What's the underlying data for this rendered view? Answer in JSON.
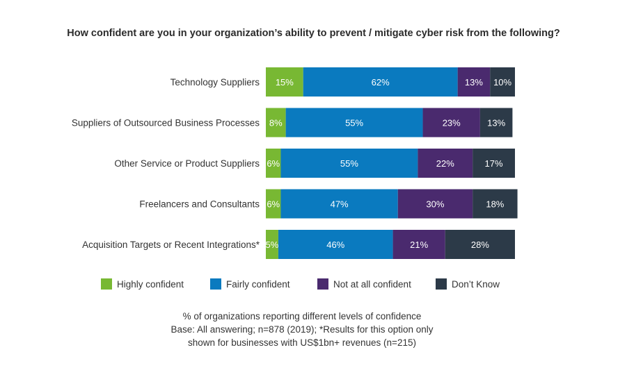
{
  "chart_data": {
    "type": "bar",
    "orientation": "horizontal",
    "stacked": true,
    "title": "How confident are you in your organization’s ability to prevent / mitigate cyber risk from the following?",
    "categories": [
      "Technology Suppliers",
      "Suppliers of Outsourced Business Processes",
      "Other Service or Product Suppliers",
      "Freelancers and Consultants",
      "Acquisition Targets or Recent Integrations*"
    ],
    "series": [
      {
        "name": "Highly confident",
        "color": "#78b833",
        "values": [
          15,
          8,
          6,
          6,
          5
        ]
      },
      {
        "name": "Fairly confident",
        "color": "#0a7abf",
        "values": [
          62,
          55,
          55,
          47,
          46
        ]
      },
      {
        "name": "Not at all confident",
        "color": "#4a2a6e",
        "values": [
          13,
          23,
          22,
          30,
          21
        ]
      },
      {
        "name": "Don’t Know",
        "color": "#2c3a48",
        "values": [
          10,
          13,
          17,
          18,
          28
        ]
      }
    ],
    "data_labels": [
      [
        "15%",
        "62%",
        "13%",
        "10%"
      ],
      [
        "8%",
        "55%",
        "23%",
        "13%"
      ],
      [
        "6%",
        "55%",
        "22%",
        "17%"
      ],
      [
        "6%",
        "47%",
        "30%",
        "18%"
      ],
      [
        "5%",
        "46%",
        "21%",
        "28%"
      ]
    ],
    "xlim": [
      0,
      100
    ],
    "xlabel": "",
    "ylabel": "",
    "legend_position": "bottom",
    "grid": false
  },
  "footnote": {
    "line1": "% of organizations reporting different levels of confidence",
    "line2": "Base: All answering; n=878 (2019); *Results for this option only",
    "line3": "shown for businesses with US$1bn+ revenues (n=215)"
  }
}
